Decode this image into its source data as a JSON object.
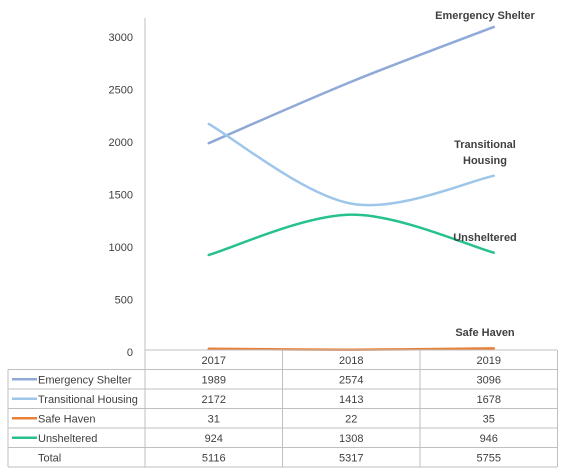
{
  "chart_data": {
    "type": "line",
    "categories": [
      "2017",
      "2018",
      "2019"
    ],
    "ylim": [
      0,
      3000
    ],
    "yticks": [
      0,
      500,
      1000,
      1500,
      2000,
      2500,
      3000
    ],
    "series": [
      {
        "name": "Emergency Shelter",
        "values": [
          1989,
          2574,
          3096
        ],
        "color": "#8fa9d8",
        "label_lines": [
          "Emergency Shelter"
        ]
      },
      {
        "name": "Transitional Housing",
        "values": [
          2172,
          1413,
          1678
        ],
        "color": "#9dc6ea",
        "label_lines": [
          "Transitional",
          "Housing"
        ]
      },
      {
        "name": "Safe Haven",
        "values": [
          31,
          22,
          35
        ],
        "color": "#e8803a",
        "label_lines": [
          "Safe Haven"
        ]
      },
      {
        "name": "Unsheltered",
        "values": [
          924,
          1308,
          946
        ],
        "color": "#27c28c",
        "label_lines": [
          "Unsheltered"
        ]
      }
    ],
    "total": {
      "name": "Total",
      "values": [
        5116,
        5317,
        5755
      ]
    },
    "legend": "data-table"
  }
}
